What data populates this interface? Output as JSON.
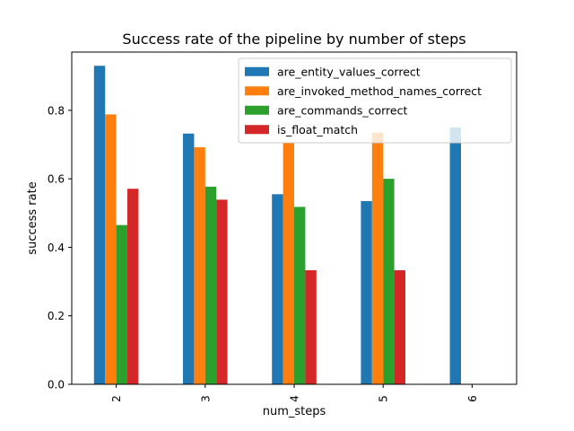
{
  "chart_data": {
    "type": "bar",
    "title": "Success rate of the pipeline by number of steps",
    "xlabel": "num_steps",
    "ylabel": "success rate",
    "categories": [
      "2",
      "3",
      "4",
      "5",
      "6"
    ],
    "ylim": [
      0,
      0.97
    ],
    "yticks": [
      0.0,
      0.2,
      0.4,
      0.6,
      0.8
    ],
    "ytick_labels": [
      "0.0",
      "0.2",
      "0.4",
      "0.6",
      "0.8"
    ],
    "legend_position": "top-right",
    "grid": false,
    "series": [
      {
        "name": "are_entity_values_correct",
        "color": "#1f77b4",
        "values": [
          0.93,
          0.732,
          0.555,
          0.535,
          0.75
        ]
      },
      {
        "name": "are_invoked_method_names_correct",
        "color": "#ff7f0e",
        "values": [
          0.788,
          0.692,
          0.705,
          0.735,
          0.0
        ]
      },
      {
        "name": "are_commands_correct",
        "color": "#2ca02c",
        "values": [
          0.465,
          0.577,
          0.518,
          0.6,
          0.0
        ]
      },
      {
        "name": "is_float_match",
        "color": "#d62728",
        "values": [
          0.571,
          0.539,
          0.333,
          0.333,
          0.0
        ]
      }
    ]
  }
}
